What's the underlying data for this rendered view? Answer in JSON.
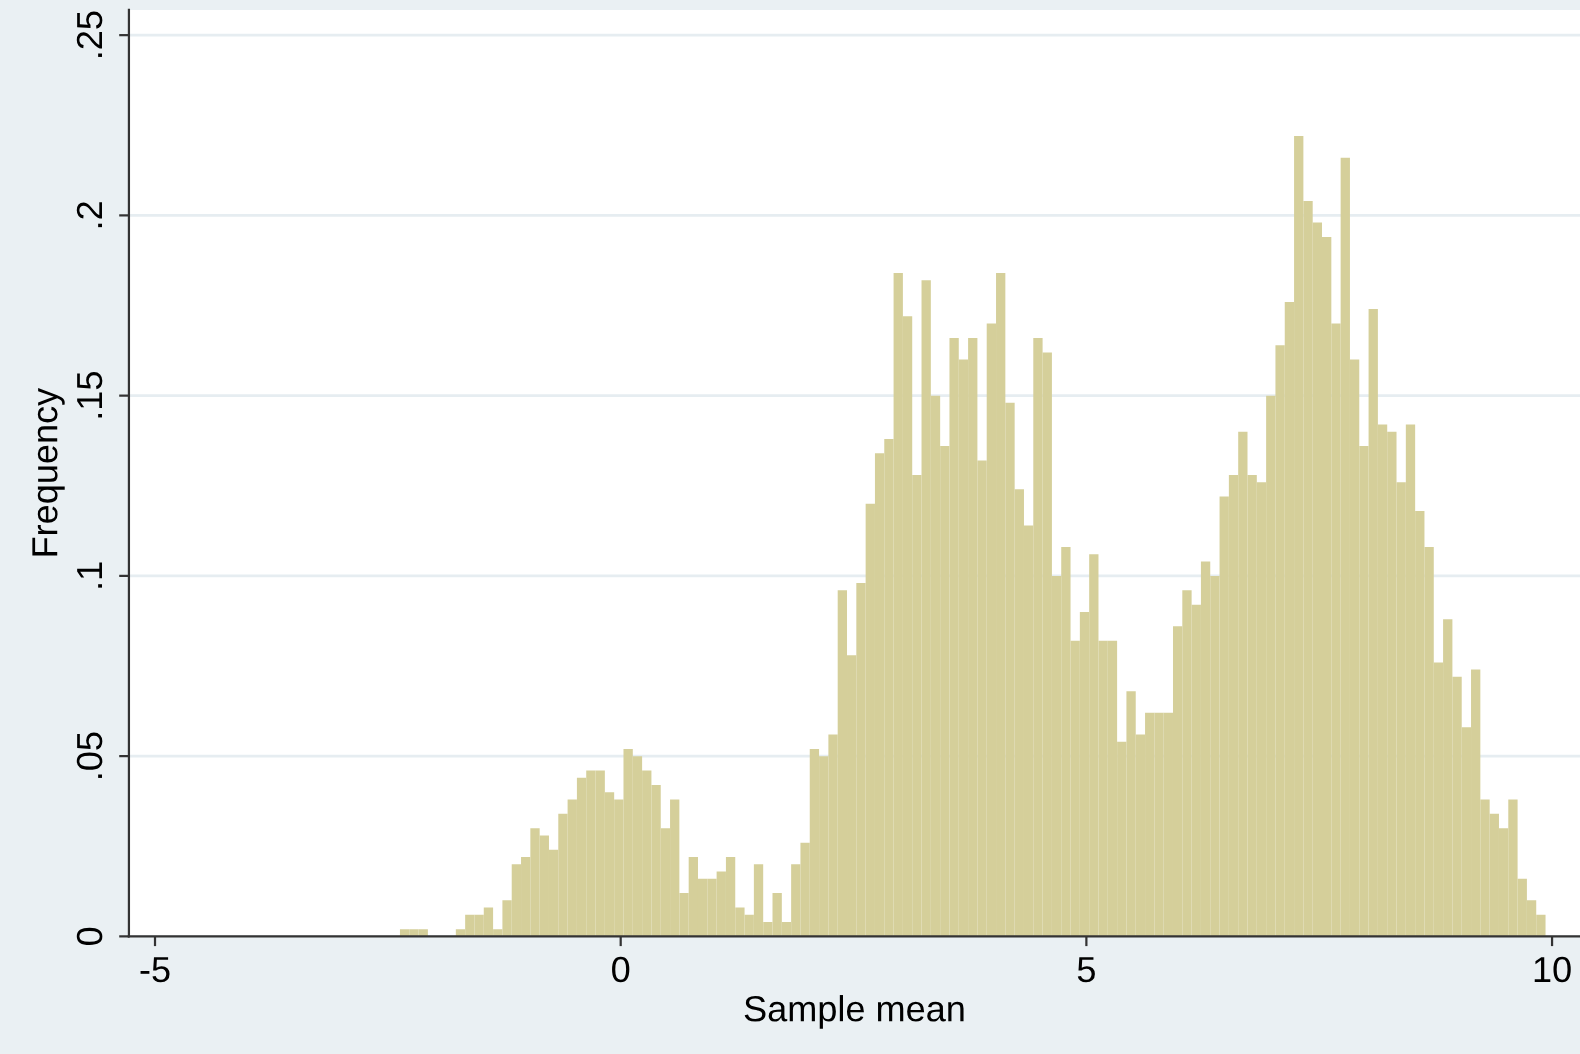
{
  "chart_data": {
    "type": "histogram",
    "xlabel": "Sample mean",
    "ylabel": "Frequency",
    "color": "#d5cf9a",
    "bins": [
      -2.37,
      -2.27,
      -2.17,
      -2.07,
      -1.97,
      -1.87,
      -1.77,
      -1.67,
      -1.57,
      -1.47,
      -1.37,
      -1.27,
      -1.17,
      -1.07,
      -0.97,
      -0.87,
      -0.77,
      -0.67,
      -0.57,
      -0.47,
      -0.37,
      -0.27,
      -0.17,
      -0.07,
      0.03,
      0.13,
      0.23,
      0.33,
      0.43,
      0.53,
      0.63,
      0.73,
      0.83,
      0.93,
      1.03,
      1.13,
      1.23,
      1.33,
      1.43,
      1.53,
      1.63,
      1.73,
      1.83,
      1.93,
      2.03,
      2.13,
      2.23,
      2.33,
      2.43,
      2.53,
      2.63,
      2.73,
      2.83,
      2.93,
      3.03,
      3.13,
      3.23,
      3.33,
      3.43,
      3.53,
      3.63,
      3.73,
      3.83,
      3.93,
      4.03,
      4.13,
      4.23,
      4.33,
      4.43,
      4.53,
      4.63,
      4.73,
      4.83,
      4.93,
      5.03,
      5.13,
      5.23,
      5.33,
      5.43,
      5.53,
      5.63,
      5.73,
      5.83,
      5.93,
      6.03,
      6.13,
      6.23,
      6.33,
      6.43,
      6.53,
      6.63,
      6.73,
      6.83,
      6.93,
      7.03,
      7.13,
      7.23,
      7.33,
      7.43,
      7.53,
      7.63,
      7.73,
      7.83,
      7.93,
      8.03,
      8.13,
      8.23,
      8.33,
      8.43,
      8.53,
      8.63,
      8.73,
      8.83,
      8.93,
      9.03,
      9.13,
      9.23,
      9.33,
      9.43,
      9.53,
      9.63,
      9.73,
      9.83,
      9.93
    ],
    "values": [
      0.002,
      0.002,
      0.002,
      0,
      0,
      0,
      0.002,
      0.006,
      0.006,
      0.008,
      0.002,
      0.01,
      0.02,
      0.022,
      0.03,
      0.028,
      0.024,
      0.034,
      0.038,
      0.044,
      0.046,
      0.046,
      0.04,
      0.038,
      0.052,
      0.05,
      0.046,
      0.042,
      0.03,
      0.038,
      0.012,
      0.022,
      0.016,
      0.016,
      0.018,
      0.022,
      0.008,
      0.006,
      0.02,
      0.004,
      0.012,
      0.004,
      0.02,
      0.026,
      0.052,
      0.05,
      0.056,
      0.096,
      0.078,
      0.098,
      0.12,
      0.134,
      0.138,
      0.184,
      0.172,
      0.128,
      0.182,
      0.15,
      0.136,
      0.166,
      0.16,
      0.166,
      0.132,
      0.17,
      0.184,
      0.148,
      0.124,
      0.114,
      0.166,
      0.162,
      0.1,
      0.108,
      0.082,
      0.09,
      0.106,
      0.082,
      0.082,
      0.054,
      0.068,
      0.056,
      0.062,
      0.062,
      0.062,
      0.086,
      0.096,
      0.092,
      0.104,
      0.1,
      0.122,
      0.128,
      0.14,
      0.128,
      0.126,
      0.15,
      0.164,
      0.176,
      0.222,
      0.204,
      0.198,
      0.194,
      0.17,
      0.216,
      0.16,
      0.136,
      0.174,
      0.142,
      0.14,
      0.126,
      0.142,
      0.118,
      0.108,
      0.076,
      0.088,
      0.072,
      0.058,
      0.074,
      0.038,
      0.034,
      0.03,
      0.038,
      0.016,
      0.01,
      0.006
    ],
    "xlim": [
      -5.28,
      10.3
    ],
    "ylim": [
      0,
      0.257
    ],
    "xticks": [
      -5,
      0,
      5,
      10
    ],
    "yticks": [
      0,
      {
        "value": 0.05,
        "label": ".05"
      },
      {
        "value": 0.1,
        "label": ".1"
      },
      {
        "value": 0.15,
        "label": ".15"
      },
      {
        "value": 0.2,
        "label": ".2"
      },
      {
        "value": 0.25,
        "label": ".25"
      }
    ],
    "grid": "y"
  }
}
